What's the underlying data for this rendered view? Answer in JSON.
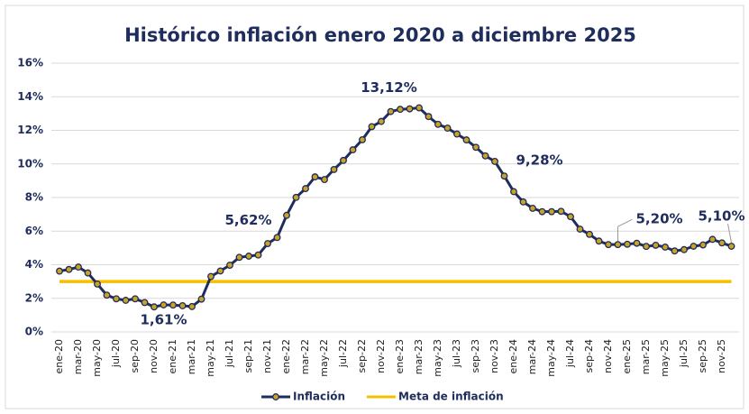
{
  "chart_data": {
    "type": "line",
    "title": "Histórico inflación enero 2020 a diciembre 2025",
    "categories": [
      "ene-20",
      null,
      "mar-20",
      null,
      "may-20",
      null,
      "jul-20",
      null,
      "sep-20",
      null,
      "nov-20",
      null,
      "ene-21",
      null,
      "mar-21",
      null,
      "may-21",
      null,
      "jul-21",
      null,
      "sep-21",
      null,
      "nov-21",
      null,
      "ene-22",
      null,
      "mar-22",
      null,
      "may-22",
      null,
      "jul-22",
      null,
      "sep-22",
      null,
      "nov-22",
      null,
      "ene-23",
      null,
      "mar-23",
      null,
      "may-23",
      null,
      "jul-23",
      null,
      "sep-23",
      null,
      "nov-23",
      null,
      "ene-24",
      null,
      "mar-24",
      null,
      "may-24",
      null,
      "jul-24",
      null,
      "sep-24",
      null,
      "nov-24",
      null,
      "ene-25",
      null,
      "mar-25",
      null,
      "may-25",
      null,
      "jul-25",
      null,
      "sep-25",
      null,
      "nov-25",
      null
    ],
    "series": [
      {
        "name": "Inflación",
        "color": "#1f2d5c",
        "marker_color": "#c9a227",
        "values": [
          3.62,
          3.72,
          3.86,
          3.51,
          2.85,
          2.19,
          1.97,
          1.88,
          1.97,
          1.75,
          1.49,
          1.61,
          1.6,
          1.56,
          1.51,
          1.95,
          3.3,
          3.63,
          3.97,
          4.44,
          4.51,
          4.58,
          5.26,
          5.62,
          6.94,
          8.01,
          8.53,
          9.23,
          9.07,
          9.67,
          10.21,
          10.84,
          11.44,
          12.22,
          12.53,
          13.12,
          13.25,
          13.28,
          13.34,
          12.82,
          12.36,
          12.13,
          11.78,
          11.43,
          10.99,
          10.48,
          10.15,
          9.28,
          8.35,
          7.74,
          7.36,
          7.16,
          7.16,
          7.18,
          6.86,
          6.12,
          5.81,
          5.41,
          5.2,
          5.2,
          5.22,
          5.28,
          5.09,
          5.16,
          5.05,
          4.82,
          4.9,
          5.1,
          5.18,
          5.51,
          5.3,
          5.1
        ],
        "value_labels": [
          null,
          null,
          null,
          null,
          null,
          null,
          null,
          null,
          null,
          null,
          null,
          "1,61%",
          null,
          null,
          null,
          null,
          null,
          null,
          null,
          null,
          null,
          null,
          null,
          "5,62%",
          null,
          null,
          null,
          null,
          null,
          null,
          null,
          null,
          null,
          null,
          null,
          "13,12%",
          null,
          null,
          null,
          null,
          null,
          null,
          null,
          null,
          null,
          null,
          null,
          "9,28%",
          null,
          null,
          null,
          null,
          null,
          null,
          null,
          null,
          null,
          null,
          null,
          "5,20%",
          null,
          null,
          null,
          null,
          null,
          null,
          null,
          null,
          null,
          null,
          null,
          "5,10%"
        ]
      },
      {
        "name": "Meta de inflación",
        "color": "#f5c000",
        "values": [
          3,
          3,
          3,
          3,
          3,
          3,
          3,
          3,
          3,
          3,
          3,
          3,
          3,
          3,
          3,
          3,
          3,
          3,
          3,
          3,
          3,
          3,
          3,
          3,
          3,
          3,
          3,
          3,
          3,
          3,
          3,
          3,
          3,
          3,
          3,
          3,
          3,
          3,
          3,
          3,
          3,
          3,
          3,
          3,
          3,
          3,
          3,
          3,
          3,
          3,
          3,
          3,
          3,
          3,
          3,
          3,
          3,
          3,
          3,
          3,
          3,
          3,
          3,
          3,
          3,
          3,
          3,
          3,
          3,
          3,
          3,
          3
        ]
      }
    ],
    "ylim": [
      0,
      16
    ],
    "yticks": [
      {
        "value": 0,
        "label": "0%"
      },
      {
        "value": 2,
        "label": "2%"
      },
      {
        "value": 4,
        "label": "4%"
      },
      {
        "value": 6,
        "label": "6%"
      },
      {
        "value": 8,
        "label": "8%"
      },
      {
        "value": 10,
        "label": "10%"
      },
      {
        "value": 12,
        "label": "12%"
      },
      {
        "value": 14,
        "label": "14%"
      },
      {
        "value": 16,
        "label": "16%"
      }
    ],
    "grid": true,
    "legend": "bottom"
  }
}
